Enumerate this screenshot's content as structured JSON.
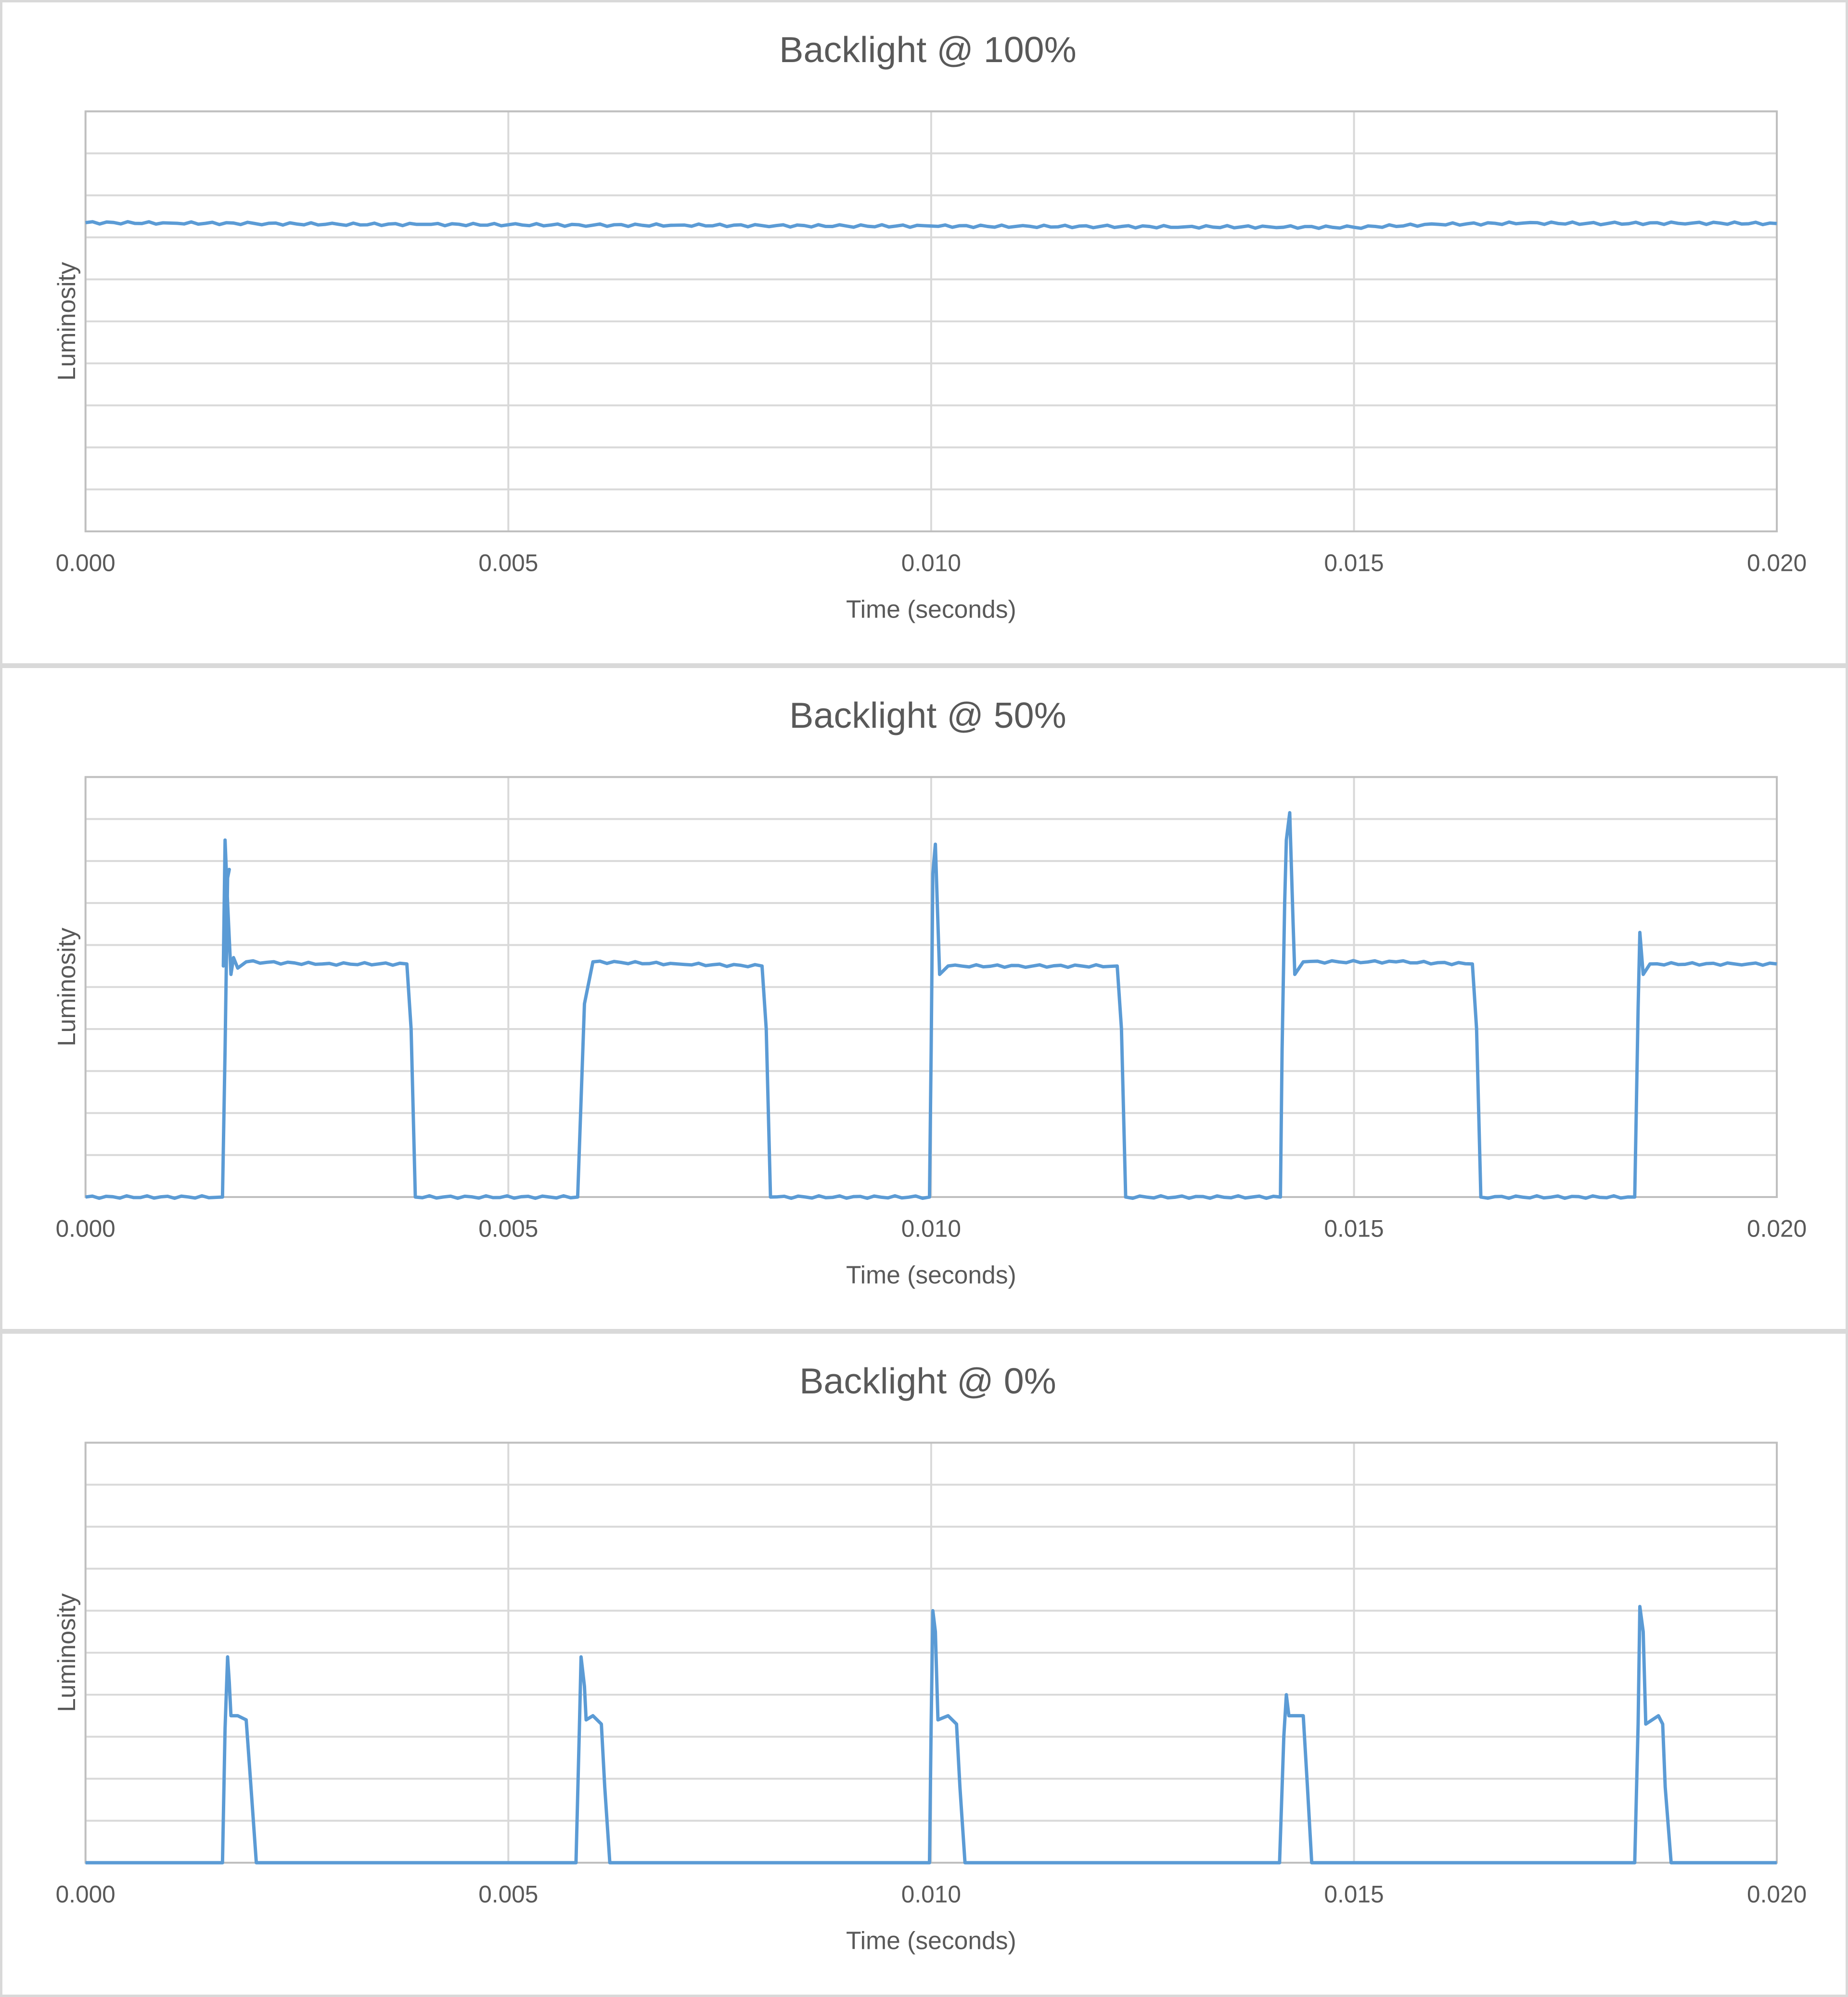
{
  "colors": {
    "series": "#5b9bd5",
    "grid": "#d9d9d9",
    "text": "#595959",
    "border": "#d9d9d9"
  },
  "chart_data": [
    {
      "type": "line",
      "title": "Backlight @ 100%",
      "xlabel": "Time (seconds)",
      "ylabel": "Luminosity",
      "xlim": [
        0,
        0.02
      ],
      "ylim": [
        0,
        10
      ],
      "x_ticks": [
        "0.000",
        "0.005",
        "0.010",
        "0.015",
        "0.020"
      ],
      "y_gridlines": 10,
      "grid": true,
      "legend": "none",
      "series": [
        {
          "points": [
            [
              0,
              7.35
            ],
            [
              0.001,
              7.34
            ],
            [
              0.002,
              7.33
            ],
            [
              0.003,
              7.31
            ],
            [
              0.004,
              7.31
            ],
            [
              0.005,
              7.3
            ],
            [
              0.006,
              7.29
            ],
            [
              0.007,
              7.29
            ],
            [
              0.008,
              7.28
            ],
            [
              0.009,
              7.27
            ],
            [
              0.01,
              7.27
            ],
            [
              0.011,
              7.26
            ],
            [
              0.012,
              7.26
            ],
            [
              0.013,
              7.25
            ],
            [
              0.014,
              7.25
            ],
            [
              0.015,
              7.24
            ],
            [
              0.016,
              7.31
            ],
            [
              0.017,
              7.34
            ],
            [
              0.018,
              7.33
            ],
            [
              0.019,
              7.34
            ],
            [
              0.02,
              7.33
            ]
          ],
          "wiggle": 0.03
        }
      ]
    },
    {
      "type": "line",
      "title": "Backlight @ 50%",
      "xlabel": "Time (seconds)",
      "ylabel": "Luminosity",
      "xlim": [
        0,
        0.02
      ],
      "ylim": [
        0,
        10
      ],
      "x_ticks": [
        "0.000",
        "0.005",
        "0.010",
        "0.015",
        "0.020"
      ],
      "y_gridlines": 10,
      "grid": true,
      "legend": "none",
      "series": [
        {
          "points": [
            [
              0,
              0
            ],
            [
              0.00162,
              0
            ],
            [
              0.00165,
              3.5
            ],
            [
              0.00168,
              7.6
            ],
            [
              0.0017,
              7.8
            ],
            [
              0.00166,
              7.6
            ],
            [
              0.00163,
              5.5
            ],
            [
              0.00165,
              8.5
            ],
            [
              0.00168,
              7.0
            ],
            [
              0.00172,
              5.3
            ],
            [
              0.00175,
              5.7
            ],
            [
              0.0018,
              5.45
            ],
            [
              0.0019,
              5.6
            ],
            [
              0.0028,
              5.55
            ],
            [
              0.0038,
              5.55
            ],
            [
              0.00385,
              4.0
            ],
            [
              0.0039,
              0
            ],
            [
              0.00582,
              0
            ],
            [
              0.0059,
              4.6
            ],
            [
              0.006,
              5.6
            ],
            [
              0.007,
              5.55
            ],
            [
              0.008,
              5.5
            ],
            [
              0.00805,
              4.0
            ],
            [
              0.0081,
              0
            ],
            [
              0.00998,
              0
            ],
            [
              0.01,
              3.5
            ],
            [
              0.01002,
              7.7
            ],
            [
              0.01005,
              8.4
            ],
            [
              0.01008,
              6.5
            ],
            [
              0.0101,
              5.3
            ],
            [
              0.0102,
              5.5
            ],
            [
              0.0112,
              5.5
            ],
            [
              0.0122,
              5.5
            ],
            [
              0.01225,
              4.0
            ],
            [
              0.0123,
              0
            ],
            [
              0.01413,
              0
            ],
            [
              0.01415,
              3.5
            ],
            [
              0.01418,
              7.0
            ],
            [
              0.0142,
              8.5
            ],
            [
              0.01424,
              9.15
            ],
            [
              0.01428,
              6.5
            ],
            [
              0.0143,
              5.3
            ],
            [
              0.0144,
              5.6
            ],
            [
              0.0155,
              5.6
            ],
            [
              0.0164,
              5.55
            ],
            [
              0.01645,
              4.0
            ],
            [
              0.0165,
              0
            ],
            [
              0.01832,
              0
            ],
            [
              0.01836,
              4.5
            ],
            [
              0.01838,
              6.3
            ],
            [
              0.01842,
              5.3
            ],
            [
              0.0185,
              5.55
            ],
            [
              0.0195,
              5.55
            ],
            [
              0.02,
              5.55
            ]
          ],
          "wiggle": 0.03
        }
      ]
    },
    {
      "type": "line",
      "title": "Backlight @ 0%",
      "xlabel": "Time (seconds)",
      "ylabel": "Luminosity",
      "xlim": [
        0,
        0.02
      ],
      "ylim": [
        0,
        10
      ],
      "x_ticks": [
        "0.000",
        "0.005",
        "0.010",
        "0.015",
        "0.020"
      ],
      "y_gridlines": 10,
      "grid": true,
      "legend": "none",
      "series": [
        {
          "points": [
            [
              0,
              0
            ],
            [
              0.00162,
              0
            ],
            [
              0.00165,
              3.2
            ],
            [
              0.00168,
              4.9
            ],
            [
              0.0017,
              4.3
            ],
            [
              0.00172,
              3.5
            ],
            [
              0.0018,
              3.5
            ],
            [
              0.0019,
              3.4
            ],
            [
              0.00195,
              2.0
            ],
            [
              0.00202,
              0
            ],
            [
              0.0058,
              0
            ],
            [
              0.00584,
              3.2
            ],
            [
              0.00586,
              4.9
            ],
            [
              0.0059,
              4.2
            ],
            [
              0.00592,
              3.4
            ],
            [
              0.006,
              3.5
            ],
            [
              0.0061,
              3.3
            ],
            [
              0.00614,
              1.8
            ],
            [
              0.0062,
              0
            ],
            [
              0.00998,
              0
            ],
            [
              0.01,
              3.3
            ],
            [
              0.01002,
              6.0
            ],
            [
              0.01005,
              5.5
            ],
            [
              0.01008,
              3.4
            ],
            [
              0.0102,
              3.5
            ],
            [
              0.0103,
              3.3
            ],
            [
              0.01034,
              1.8
            ],
            [
              0.0104,
              0
            ],
            [
              0.01412,
              0
            ],
            [
              0.01417,
              3.0
            ],
            [
              0.0142,
              4.0
            ],
            [
              0.01423,
              3.5
            ],
            [
              0.01428,
              3.5
            ],
            [
              0.0144,
              3.5
            ],
            [
              0.01445,
              1.8
            ],
            [
              0.0145,
              0
            ],
            [
              0.01832,
              0
            ],
            [
              0.01836,
              3.3
            ],
            [
              0.01838,
              6.1
            ],
            [
              0.01842,
              5.5
            ],
            [
              0.01845,
              3.3
            ],
            [
              0.0186,
              3.5
            ],
            [
              0.01865,
              3.3
            ],
            [
              0.01868,
              1.8
            ],
            [
              0.01875,
              0
            ],
            [
              0.02,
              0
            ]
          ],
          "wiggle": 0
        }
      ]
    }
  ]
}
